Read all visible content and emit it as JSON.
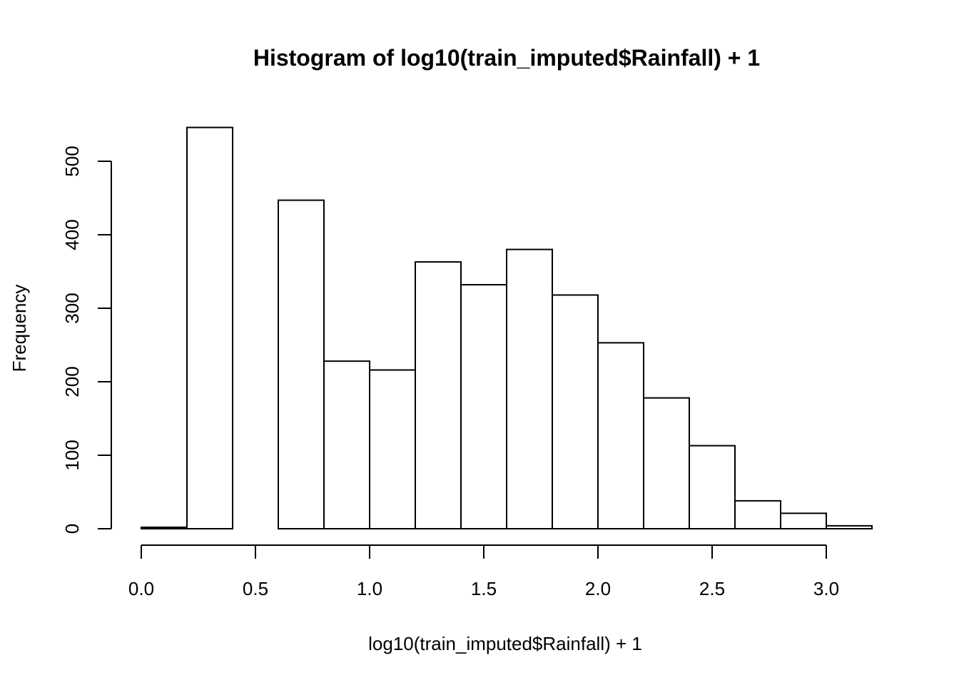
{
  "chart_data": {
    "type": "bar",
    "title": "Histogram of log10(train_imputed$Rainfall) + 1",
    "xlabel": "log10(train_imputed$Rainfall) + 1",
    "ylabel": "Frequency",
    "bins": [
      {
        "start": 0.0,
        "end": 0.2,
        "value": 2
      },
      {
        "start": 0.2,
        "end": 0.4,
        "value": 546
      },
      {
        "start": 0.4,
        "end": 0.6,
        "value": 0
      },
      {
        "start": 0.6,
        "end": 0.8,
        "value": 447
      },
      {
        "start": 0.8,
        "end": 1.0,
        "value": 228
      },
      {
        "start": 1.0,
        "end": 1.2,
        "value": 216
      },
      {
        "start": 1.2,
        "end": 1.4,
        "value": 363
      },
      {
        "start": 1.4,
        "end": 1.6,
        "value": 332
      },
      {
        "start": 1.6,
        "end": 1.8,
        "value": 380
      },
      {
        "start": 1.8,
        "end": 2.0,
        "value": 318
      },
      {
        "start": 2.0,
        "end": 2.2,
        "value": 253
      },
      {
        "start": 2.2,
        "end": 2.4,
        "value": 178
      },
      {
        "start": 2.4,
        "end": 2.6,
        "value": 113
      },
      {
        "start": 2.6,
        "end": 2.8,
        "value": 38
      },
      {
        "start": 2.8,
        "end": 3.0,
        "value": 21
      },
      {
        "start": 3.0,
        "end": 3.2,
        "value": 4
      }
    ],
    "xlim": [
      0.0,
      3.2
    ],
    "ylim": [
      0,
      546
    ],
    "x_ticks": [
      {
        "value": 0.0,
        "label": "0.0"
      },
      {
        "value": 0.5,
        "label": "0.5"
      },
      {
        "value": 1.0,
        "label": "1.0"
      },
      {
        "value": 1.5,
        "label": "1.5"
      },
      {
        "value": 2.0,
        "label": "2.0"
      },
      {
        "value": 2.5,
        "label": "2.5"
      },
      {
        "value": 3.0,
        "label": "3.0"
      }
    ],
    "y_ticks": [
      {
        "value": 0,
        "label": "0"
      },
      {
        "value": 100,
        "label": "100"
      },
      {
        "value": 200,
        "label": "200"
      },
      {
        "value": 300,
        "label": "300"
      },
      {
        "value": 400,
        "label": "400"
      },
      {
        "value": 500,
        "label": "500"
      }
    ],
    "grid": false
  },
  "colors": {
    "bar_fill": "#ffffff",
    "bar_stroke": "#000000",
    "text": "#000000",
    "background": "#ffffff"
  }
}
